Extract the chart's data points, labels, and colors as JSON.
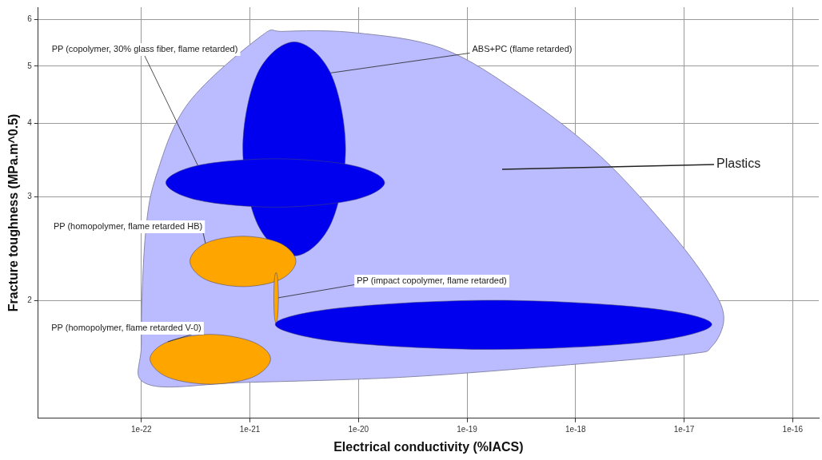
{
  "chart_data": {
    "type": "area",
    "xlabel": "Electrical conductivity (%IACS)",
    "ylabel": "Fracture toughness (MPa.m^0.5)",
    "log": "xy",
    "grid": true,
    "legend": false,
    "xlim": [
      1.12e-23,
      1.74e-16
    ],
    "ylim": [
      1.26,
      6.3
    ],
    "xticks": [
      {
        "value": 1e-22,
        "label": "1e-22"
      },
      {
        "value": 1e-21,
        "label": "1e-21"
      },
      {
        "value": 1e-20,
        "label": "1e-20"
      },
      {
        "value": 1e-19,
        "label": "1e-19"
      },
      {
        "value": 1e-18,
        "label": "1e-18"
      },
      {
        "value": 1e-17,
        "label": "1e-17"
      },
      {
        "value": 1e-16,
        "label": "1e-16"
      }
    ],
    "yticks": [
      2,
      3,
      4,
      5,
      6
    ],
    "series": [
      {
        "color": "#bbbbff",
        "x": [
          1.14e-22,
          1e-22,
          1.09e-22,
          1.4e-22,
          2.74e-22,
          1.24e-21,
          2.06e-21,
          9.35e-21,
          5.9e-20,
          3.19e-19,
          1.71e-18,
          7.8e-18,
          1.8e-17,
          2.32e-17,
          1.8e-17,
          1.09e-17,
          7.4e-19,
          2.56e-20,
          8.9e-22
        ],
        "values": [
          1.44,
          1.7,
          2.59,
          3.3,
          4.34,
          5.61,
          5.73,
          5.7,
          5.36,
          4.47,
          3.51,
          2.59,
          2.1,
          1.86,
          1.67,
          1.62,
          1.55,
          1.48,
          1.45
        ]
      },
      {
        "color": "#0000ee",
        "x": [
          7.6e-21,
          5.52e-21,
          2.56e-21,
          1.18e-21,
          8.6e-22,
          1.18e-21,
          2.56e-21,
          5.52e-21
        ],
        "values": [
          3.62,
          4.87,
          5.5,
          4.87,
          3.62,
          2.69,
          2.38,
          2.69
        ]
      },
      {
        "color": "#0000ee",
        "x": [
          1.74e-20,
          8.83e-21,
          1.71e-21,
          3.31e-22,
          1.68e-22,
          3.31e-22,
          1.71e-21,
          8.83e-21
        ],
        "values": [
          3.17,
          3.39,
          3.48,
          3.39,
          3.17,
          2.96,
          2.88,
          2.96
        ]
      },
      {
        "color": "#ffa500",
        "x": [
          2.65e-21,
          1.91e-21,
          8.61e-22,
          3.89e-22,
          2.8e-22,
          3.89e-22,
          8.61e-22,
          1.91e-21
        ],
        "values": [
          2.33,
          2.5,
          2.57,
          2.5,
          2.33,
          2.17,
          2.11,
          2.17
        ]
      },
      {
        "color": "#ffa500",
        "x": [
          1.83e-21,
          1.8e-21,
          1.74e-21,
          1.68e-21,
          1.66e-21,
          1.68e-21,
          1.74e-21,
          1.8e-21
        ],
        "values": [
          2.02,
          2.17,
          2.23,
          2.17,
          2.02,
          1.88,
          1.83,
          1.88
        ]
      },
      {
        "color": "#0000ee",
        "x": [
          1.8e-17,
          4.63e-18,
          1.75e-19,
          6.64e-21,
          1.71e-21,
          6.64e-21,
          1.75e-19,
          4.63e-18
        ],
        "values": [
          1.82,
          1.94,
          2.0,
          1.94,
          1.82,
          1.7,
          1.65,
          1.7
        ]
      },
      {
        "color": "#ffa500",
        "x": [
          1.55e-21,
          1.06e-21,
          4.31e-22,
          1.75e-22,
          1.2e-22,
          1.75e-22,
          4.31e-22,
          1.06e-21
        ],
        "values": [
          1.59,
          1.7,
          1.75,
          1.7,
          1.59,
          1.48,
          1.44,
          1.48
        ]
      }
    ],
    "annotations": [
      {
        "text": "PP (copolymer, 30% glass fiber, flame retarded)",
        "x": 3.31e-22,
        "y": 3.39
      },
      {
        "text": "ABS+PC (flame retarded)",
        "x": 5.52e-21,
        "y": 4.87
      },
      "Plastics",
      {
        "text": "PP (homopolymer, flame retarded HB)",
        "x": 3.89e-22,
        "y": 2.5
      },
      {
        "text": "PP (impact copolymer, flame retarded)",
        "x": 1.83e-21,
        "y": 2.02
      },
      {
        "text": "PP (homopolymer, flame retarded V-0)",
        "x": 1.75e-22,
        "y": 1.7
      }
    ]
  }
}
